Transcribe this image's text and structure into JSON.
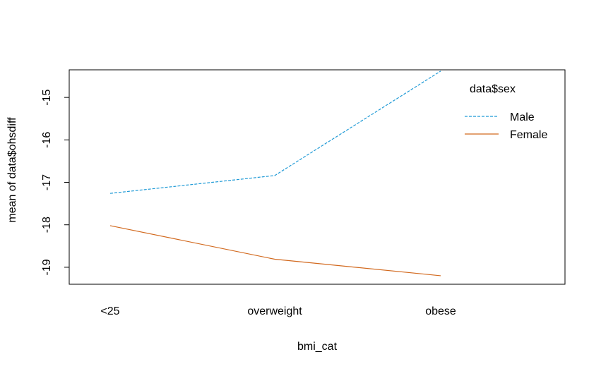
{
  "chart_data": {
    "type": "line",
    "title": "",
    "xlabel": "bmi_cat",
    "ylabel": "mean of  data$ohsdiff",
    "categories": [
      "<25",
      "overweight",
      "obese"
    ],
    "ylim": [
      -19.4,
      -14.35
    ],
    "yticks": [
      -15,
      -16,
      -17,
      -18,
      -19
    ],
    "ytick_labels": [
      "-15",
      "-16",
      "-17",
      "-18",
      "-19"
    ],
    "grid": false,
    "legend": {
      "title": "data$sex",
      "placement": "top-right"
    },
    "series": [
      {
        "name": "Male",
        "values": [
          -17.26,
          -16.84,
          -14.38
        ],
        "color": "#1f9ad6",
        "dash": "dashed"
      },
      {
        "name": "Female",
        "values": [
          -18.02,
          -18.81,
          -19.2
        ],
        "color": "#d2691e",
        "dash": "solid"
      }
    ]
  }
}
